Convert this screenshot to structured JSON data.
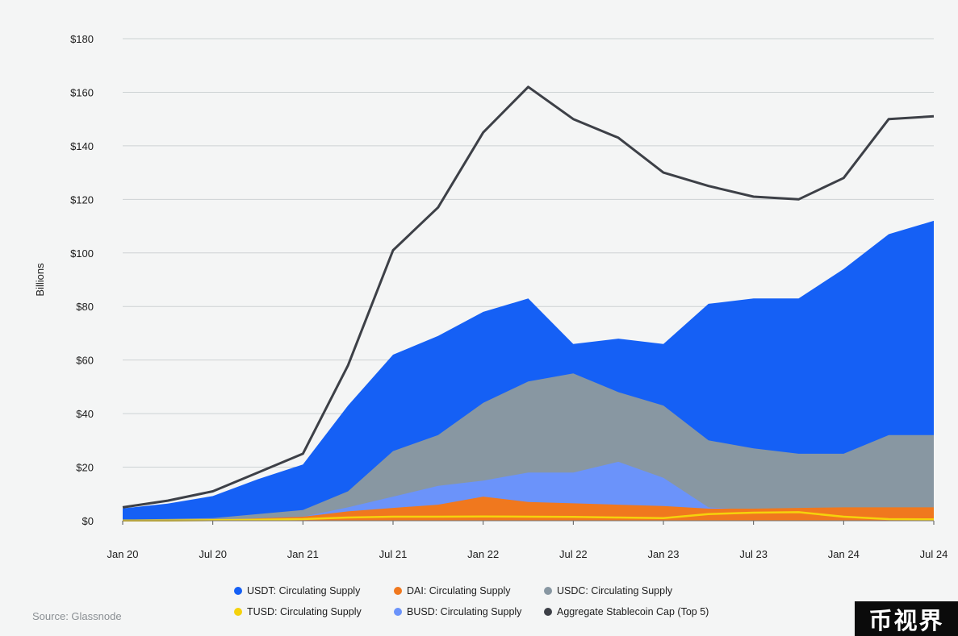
{
  "chart_data": {
    "type": "area",
    "ylabel": "Billions",
    "source": "Source: Glassnode",
    "watermark": "币视界",
    "x_ticks": [
      "Jan 20",
      "Jul 20",
      "Jan 21",
      "Jul 21",
      "Jan 22",
      "Jul 22",
      "Jan 23",
      "Jul 23",
      "Jan 24",
      "Jul 24"
    ],
    "y_ticks": [
      "$0",
      "$20",
      "$40",
      "$60",
      "$80",
      "$100",
      "$120",
      "$140",
      "$160",
      "$180"
    ],
    "ylim": [
      0,
      180
    ],
    "xlim": [
      "2020-01",
      "2024-07"
    ],
    "grid": true,
    "legend_position": "bottom",
    "x": [
      "2020-01",
      "2020-04",
      "2020-07",
      "2020-10",
      "2021-01",
      "2021-04",
      "2021-07",
      "2021-10",
      "2022-01",
      "2022-04",
      "2022-07",
      "2022-10",
      "2023-01",
      "2023-04",
      "2023-07",
      "2023-10",
      "2024-01",
      "2024-04",
      "2024-07"
    ],
    "series": [
      {
        "name": "USDT: Circulating Supply",
        "color": "#1560f5",
        "kind": "area",
        "values": [
          4.6,
          6.4,
          9.2,
          15.5,
          21,
          43,
          62,
          69,
          78,
          83,
          66,
          68,
          66,
          81,
          83,
          83,
          94,
          107,
          112
        ]
      },
      {
        "name": "USDC: Circulating Supply",
        "color": "#8897a2",
        "kind": "area",
        "values": [
          0.4,
          0.7,
          1.0,
          2.5,
          4,
          11,
          26,
          32,
          44,
          52,
          55,
          48,
          43,
          30,
          27,
          25,
          25,
          32,
          32
        ]
      },
      {
        "name": "BUSD: Circulating Supply",
        "color": "#6b93fa",
        "kind": "area",
        "values": [
          0.2,
          0.3,
          0.4,
          1.0,
          1.5,
          5,
          9,
          13,
          15,
          18,
          18,
          22,
          16,
          5,
          4,
          3,
          2,
          1,
          0.5
        ]
      },
      {
        "name": "DAI: Circulating Supply",
        "color": "#f0781e",
        "kind": "area",
        "values": [
          0.1,
          0.1,
          0.3,
          0.9,
          1.5,
          3.5,
          4.8,
          6,
          9,
          7,
          6.5,
          6,
          5.5,
          4.5,
          4.5,
          4.8,
          5,
          5,
          5
        ]
      },
      {
        "name": "TUSD: Circulating Supply",
        "color": "#f5d20c",
        "kind": "line",
        "values": [
          0.1,
          0.1,
          0.2,
          0.4,
          0.6,
          1.2,
          1.5,
          1.5,
          1.6,
          1.5,
          1.4,
          1.2,
          1.0,
          2.5,
          3.0,
          3.2,
          1.5,
          0.6,
          0.5
        ]
      },
      {
        "name": "Aggregate Stablecoin Cap (Top 5)",
        "color": "#3d4047",
        "kind": "line",
        "values": [
          5,
          7.5,
          11,
          18,
          25,
          58,
          101,
          117,
          145,
          162,
          150,
          143,
          130,
          125,
          121,
          120,
          128,
          150,
          151
        ]
      }
    ]
  }
}
